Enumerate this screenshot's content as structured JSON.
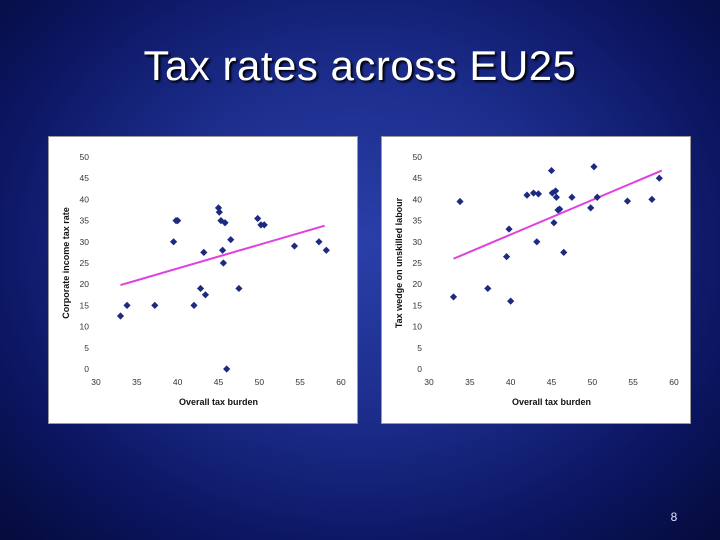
{
  "slide": {
    "title": "Tax rates across EU25",
    "page_number": "8",
    "colors": {
      "marker": "#1c2a80",
      "trend_line": "#e040e0"
    }
  },
  "chart_data": [
    {
      "type": "scatter",
      "xlabel": "Overall tax burden",
      "ylabel": "Corporate income tax rate",
      "xlim": [
        30,
        60
      ],
      "ylim": [
        0,
        50
      ],
      "x_ticks": [
        30,
        35,
        40,
        45,
        50,
        55,
        60
      ],
      "y_ticks": [
        0,
        5,
        10,
        15,
        20,
        25,
        30,
        35,
        40,
        45,
        50
      ],
      "grid": false,
      "trendline": {
        "x": [
          33,
          58
        ],
        "y": [
          19.8,
          33.8
        ]
      },
      "points": [
        {
          "x": 33,
          "y": 12.5
        },
        {
          "x": 33.8,
          "y": 15
        },
        {
          "x": 37.2,
          "y": 15
        },
        {
          "x": 39.5,
          "y": 30
        },
        {
          "x": 39.8,
          "y": 35
        },
        {
          "x": 40,
          "y": 35
        },
        {
          "x": 42,
          "y": 15
        },
        {
          "x": 42.8,
          "y": 19
        },
        {
          "x": 43.2,
          "y": 27.5
        },
        {
          "x": 43.4,
          "y": 17.5
        },
        {
          "x": 45,
          "y": 38
        },
        {
          "x": 45.1,
          "y": 37
        },
        {
          "x": 45.3,
          "y": 35
        },
        {
          "x": 45.5,
          "y": 28
        },
        {
          "x": 45.6,
          "y": 25
        },
        {
          "x": 45.8,
          "y": 34.5
        },
        {
          "x": 46,
          "y": 0
        },
        {
          "x": 46.5,
          "y": 30.5
        },
        {
          "x": 47.5,
          "y": 19
        },
        {
          "x": 49.8,
          "y": 35.5
        },
        {
          "x": 50.2,
          "y": 34
        },
        {
          "x": 50.6,
          "y": 34
        },
        {
          "x": 54.3,
          "y": 29
        },
        {
          "x": 57.3,
          "y": 30
        },
        {
          "x": 58.2,
          "y": 28
        }
      ]
    },
    {
      "type": "scatter",
      "xlabel": "Overall tax burden",
      "ylabel": "Tax wedge on unskilled labour",
      "xlim": [
        30,
        60
      ],
      "ylim": [
        0,
        50
      ],
      "x_ticks": [
        30,
        35,
        40,
        45,
        50,
        55,
        60
      ],
      "y_ticks": [
        0,
        5,
        10,
        15,
        20,
        25,
        30,
        35,
        40,
        45,
        50
      ],
      "grid": false,
      "trendline": {
        "x": [
          33,
          58.5
        ],
        "y": [
          26,
          46.8
        ]
      },
      "points": [
        {
          "x": 33,
          "y": 17
        },
        {
          "x": 33.8,
          "y": 39.5
        },
        {
          "x": 37.2,
          "y": 19
        },
        {
          "x": 39.5,
          "y": 26.5
        },
        {
          "x": 39.8,
          "y": 33
        },
        {
          "x": 40,
          "y": 16
        },
        {
          "x": 42,
          "y": 41
        },
        {
          "x": 42.8,
          "y": 41.5
        },
        {
          "x": 43.2,
          "y": 30
        },
        {
          "x": 43.4,
          "y": 41.3
        },
        {
          "x": 45,
          "y": 46.8
        },
        {
          "x": 45.1,
          "y": 41.5
        },
        {
          "x": 45.3,
          "y": 34.5
        },
        {
          "x": 45.5,
          "y": 42
        },
        {
          "x": 45.6,
          "y": 40.5
        },
        {
          "x": 45.8,
          "y": 37.5
        },
        {
          "x": 46,
          "y": 37.7
        },
        {
          "x": 46.5,
          "y": 27.5
        },
        {
          "x": 47.5,
          "y": 40.5
        },
        {
          "x": 49.8,
          "y": 38
        },
        {
          "x": 50.2,
          "y": 47.7
        },
        {
          "x": 50.6,
          "y": 40.5
        },
        {
          "x": 54.3,
          "y": 39.6
        },
        {
          "x": 57.3,
          "y": 40
        },
        {
          "x": 58.2,
          "y": 45
        }
      ]
    }
  ]
}
